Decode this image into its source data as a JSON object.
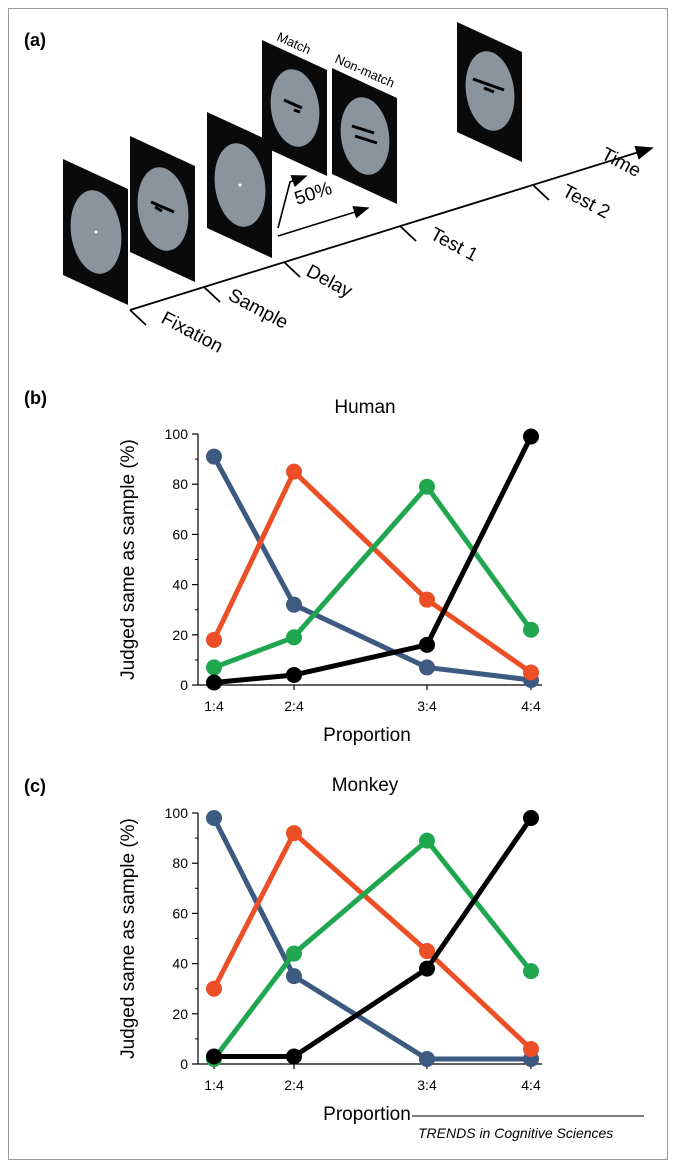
{
  "panels": {
    "a": "(a)",
    "b": "(b)",
    "c": "(c)"
  },
  "timeline": {
    "stages": [
      "Fixation",
      "Sample",
      "Delay",
      "Test 1",
      "Test 2"
    ],
    "time_label": "Time",
    "probability_label": "50%",
    "match_label": "Match",
    "nonmatch_label": "Non-match"
  },
  "colors": {
    "series_1_4": "#3d5a80",
    "series_2_4": "#ec4e26",
    "series_3_4": "#20a64f",
    "series_4_4": "#000000",
    "stimulus_bg": "#0a0a0a",
    "stimulus_disk": "#8a949c"
  },
  "credit": "TRENDS in Cognitive Sciences",
  "chart_data": [
    {
      "type": "line",
      "title": "Human",
      "xlabel": "Proportion",
      "ylabel": "Judged same as sample (%)",
      "categories": [
        "1:4",
        "2:4",
        "3:4",
        "4:4"
      ],
      "ylim": [
        0,
        100
      ],
      "yticks": [
        0,
        20,
        40,
        60,
        80,
        100
      ],
      "grid": false,
      "series": [
        {
          "color": "#3d5a80",
          "values": [
            91,
            32,
            7,
            2
          ]
        },
        {
          "color": "#ec4e26",
          "values": [
            18,
            85,
            34,
            5
          ]
        },
        {
          "color": "#20a64f",
          "values": [
            7,
            19,
            79,
            22
          ]
        },
        {
          "color": "#000000",
          "values": [
            1,
            4,
            16,
            99
          ]
        }
      ]
    },
    {
      "type": "line",
      "title": "Monkey",
      "xlabel": "Proportion",
      "ylabel": "Judged same as sample (%)",
      "categories": [
        "1:4",
        "2:4",
        "3:4",
        "4:4"
      ],
      "ylim": [
        0,
        100
      ],
      "yticks": [
        0,
        20,
        40,
        60,
        80,
        100
      ],
      "grid": false,
      "series": [
        {
          "color": "#3d5a80",
          "values": [
            98,
            35,
            2,
            2
          ]
        },
        {
          "color": "#ec4e26",
          "values": [
            30,
            92,
            45,
            6
          ]
        },
        {
          "color": "#20a64f",
          "values": [
            2,
            44,
            89,
            37
          ]
        },
        {
          "color": "#000000",
          "values": [
            3,
            3,
            38,
            98
          ]
        }
      ]
    }
  ]
}
